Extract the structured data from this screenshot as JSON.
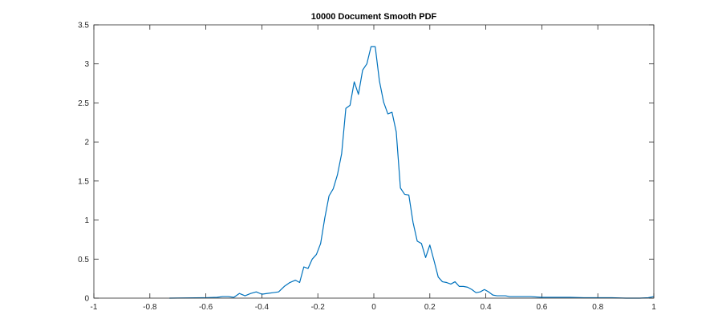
{
  "chart_data": {
    "type": "line",
    "title": "10000 Document Smooth PDF",
    "xlabel": "",
    "ylabel": "",
    "xlim": [
      -1,
      1
    ],
    "ylim": [
      0,
      3.5
    ],
    "x_ticks": [
      "-1",
      "-0.8",
      "-0.6",
      "-0.4",
      "-0.2",
      "0",
      "0.2",
      "0.4",
      "0.6",
      "0.8",
      "1"
    ],
    "y_ticks": [
      "0",
      "0.5",
      "1",
      "1.5",
      "2",
      "2.5",
      "3",
      "3.5"
    ],
    "grid": false,
    "legend": "none",
    "line_color": "#0072BD",
    "series": [
      {
        "x": [
          -0.73,
          -0.6,
          -0.56,
          -0.54,
          -0.52,
          -0.5,
          -0.48,
          -0.46,
          -0.44,
          -0.42,
          -0.4,
          -0.38,
          -0.36,
          -0.34,
          -0.32,
          -0.3,
          -0.28,
          -0.265,
          -0.25,
          -0.235,
          -0.22,
          -0.205,
          -0.19,
          -0.175,
          -0.16,
          -0.145,
          -0.13,
          -0.115,
          -0.1,
          -0.085,
          -0.07,
          -0.055,
          -0.04,
          -0.025,
          -0.01,
          0.005,
          0.02,
          0.035,
          0.05,
          0.065,
          0.08,
          0.095,
          0.11,
          0.125,
          0.14,
          0.155,
          0.17,
          0.185,
          0.2,
          0.215,
          0.23,
          0.245,
          0.26,
          0.275,
          0.29,
          0.305,
          0.32,
          0.335,
          0.35,
          0.365,
          0.38,
          0.395,
          0.41,
          0.425,
          0.44,
          0.455,
          0.47,
          0.485,
          0.5,
          0.52,
          0.54,
          0.56,
          0.6,
          0.65,
          0.7,
          0.75,
          0.8,
          0.85,
          0.9,
          0.95,
          0.98,
          1.0
        ],
        "y": [
          0.0,
          0.005,
          0.01,
          0.02,
          0.02,
          0.01,
          0.06,
          0.03,
          0.06,
          0.08,
          0.05,
          0.06,
          0.07,
          0.08,
          0.15,
          0.2,
          0.23,
          0.2,
          0.4,
          0.38,
          0.5,
          0.56,
          0.7,
          1.03,
          1.31,
          1.4,
          1.58,
          1.85,
          2.43,
          2.47,
          2.77,
          2.61,
          2.92,
          3.0,
          3.22,
          3.22,
          2.78,
          2.51,
          2.36,
          2.38,
          2.13,
          1.41,
          1.33,
          1.32,
          0.97,
          0.73,
          0.7,
          0.52,
          0.68,
          0.48,
          0.27,
          0.21,
          0.2,
          0.18,
          0.21,
          0.15,
          0.15,
          0.14,
          0.11,
          0.07,
          0.08,
          0.11,
          0.08,
          0.04,
          0.03,
          0.03,
          0.03,
          0.02,
          0.02,
          0.02,
          0.02,
          0.02,
          0.01,
          0.01,
          0.01,
          0.005,
          0.005,
          0.005,
          0.0,
          0.0,
          0.005,
          0.02
        ]
      }
    ]
  }
}
